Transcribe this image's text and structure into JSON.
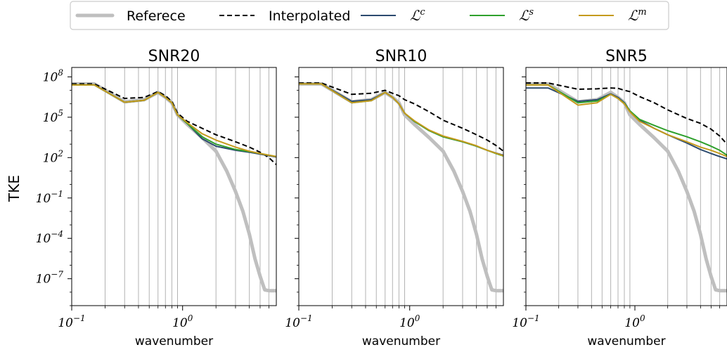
{
  "legend": {
    "placement": "top-center",
    "entries": [
      {
        "key": "reference",
        "label": "Referece",
        "color": "#bfbfbf",
        "style": "solid-thick"
      },
      {
        "key": "interpolated",
        "label": "Interpolated",
        "color": "#000000",
        "style": "dashed"
      },
      {
        "key": "lc",
        "label": "ℒ",
        "sup": "c",
        "color": "#2b4a6f",
        "style": "solid"
      },
      {
        "key": "ls",
        "label": "ℒ",
        "sup": "s",
        "color": "#2ea02c",
        "style": "solid"
      },
      {
        "key": "lm",
        "label": "ℒ",
        "sup": "m",
        "color": "#c49a1c",
        "style": "solid"
      }
    ]
  },
  "chart_data": [
    {
      "type": "line",
      "title": "SNR20",
      "xlabel": "wavenumber",
      "ylabel": "TKE",
      "xscale": "log",
      "yscale": "log",
      "xlim": [
        0.1,
        7
      ],
      "ylim": [
        1e-09,
        500000000.0
      ],
      "vertical_gridlines": [
        0.2,
        0.3,
        0.4,
        0.5,
        0.6,
        0.7,
        0.8,
        0.9,
        2,
        3,
        4,
        5,
        6
      ],
      "xticks": [
        {
          "value": 0.1,
          "base": "10",
          "exp": "−1"
        },
        {
          "value": 1,
          "base": "10",
          "exp": "0"
        }
      ],
      "yticks": [
        {
          "value": 100000000.0,
          "base": "10",
          "exp": "8"
        },
        {
          "value": 100000.0,
          "base": "10",
          "exp": "5"
        },
        {
          "value": 100.0,
          "base": "10",
          "exp": "2"
        },
        {
          "value": 0.1,
          "base": "10",
          "exp": "−1"
        },
        {
          "value": 0.0001,
          "base": "10",
          "exp": "−4"
        },
        {
          "value": 1e-07,
          "base": "10",
          "exp": "−7"
        }
      ],
      "series": [
        {
          "key": "reference",
          "x": [
            0.1,
            0.16,
            0.3,
            0.45,
            0.6,
            0.7,
            0.8,
            0.9,
            1.1,
            1.5,
            2,
            2.5,
            3,
            3.5,
            4,
            4.5,
            5,
            5.5,
            6,
            7
          ],
          "y": [
            30000000.0,
            30000000.0,
            1400000.0,
            2000000.0,
            7000000.0,
            3000000.0,
            1200000.0,
            150000.0,
            30000.0,
            3000.0,
            300.0,
            10.0,
            0.3,
            0.01,
            0.0002,
            3e-06,
            1.5e-07,
            1.5e-08,
            1.3e-08,
            1.3e-08
          ]
        },
        {
          "key": "interpolated",
          "x": [
            0.1,
            0.16,
            0.3,
            0.45,
            0.6,
            0.7,
            0.8,
            0.9,
            1.1,
            1.5,
            2,
            3,
            4,
            5,
            6,
            7
          ],
          "y": [
            30000000.0,
            30000000.0,
            2500000.0,
            3000000.0,
            8000000.0,
            4000000.0,
            1500000.0,
            200000.0,
            50000.0,
            15000.0,
            5000.0,
            1500.0,
            600.0,
            250.0,
            100.0,
            30.0
          ]
        },
        {
          "key": "lc",
          "x": [
            0.1,
            0.16,
            0.3,
            0.45,
            0.6,
            0.7,
            0.8,
            0.9,
            1.1,
            1.5,
            2,
            3,
            4,
            5,
            6,
            7
          ],
          "y": [
            25000000.0,
            25000000.0,
            1300000.0,
            1800000.0,
            7000000.0,
            3000000.0,
            1200000.0,
            150000.0,
            35000.0,
            2500.0,
            700.0,
            350.0,
            250.0,
            180.0,
            140.0,
            110.0
          ]
        },
        {
          "key": "ls",
          "x": [
            0.1,
            0.16,
            0.3,
            0.45,
            0.6,
            0.7,
            0.8,
            0.9,
            1.1,
            1.5,
            2,
            3,
            4,
            5,
            6,
            7
          ],
          "y": [
            25000000.0,
            25000000.0,
            1300000.0,
            1800000.0,
            7000000.0,
            3000000.0,
            1200000.0,
            150000.0,
            35000.0,
            3500.0,
            1000.0,
            400.0,
            280.0,
            200.0,
            150.0,
            120.0
          ]
        },
        {
          "key": "lm",
          "x": [
            0.1,
            0.16,
            0.3,
            0.45,
            0.6,
            0.7,
            0.8,
            0.9,
            1.1,
            1.5,
            2,
            3,
            4,
            5,
            6,
            7
          ],
          "y": [
            25000000.0,
            25000000.0,
            1300000.0,
            1800000.0,
            7000000.0,
            3000000.0,
            1200000.0,
            150000.0,
            40000.0,
            6000.0,
            2000.0,
            600.0,
            300.0,
            200.0,
            150.0,
            120.0
          ]
        }
      ]
    },
    {
      "type": "line",
      "title": "SNR10",
      "xlabel": "wavenumber",
      "ylabel": "",
      "xscale": "log",
      "yscale": "log",
      "xlim": [
        0.1,
        7
      ],
      "ylim": [
        1e-09,
        500000000.0
      ],
      "vertical_gridlines": [
        0.2,
        0.3,
        0.4,
        0.5,
        0.6,
        0.7,
        0.8,
        0.9,
        2,
        3,
        4,
        5,
        6
      ],
      "xticks": [
        {
          "value": 0.1,
          "base": "10",
          "exp": "−1"
        },
        {
          "value": 1,
          "base": "10",
          "exp": "0"
        }
      ],
      "yticks": [],
      "series": [
        {
          "key": "reference",
          "x": [
            0.1,
            0.16,
            0.3,
            0.45,
            0.6,
            0.7,
            0.8,
            0.9,
            1.1,
            1.5,
            2,
            2.5,
            3,
            3.5,
            4,
            4.5,
            5,
            5.5,
            6,
            7
          ],
          "y": [
            30000000.0,
            30000000.0,
            1400000.0,
            2000000.0,
            7000000.0,
            3000000.0,
            1200000.0,
            150000.0,
            30000.0,
            3000.0,
            300.0,
            10.0,
            0.3,
            0.01,
            0.0002,
            3e-06,
            1.5e-07,
            1.5e-08,
            1.3e-08,
            1.3e-08
          ]
        },
        {
          "key": "interpolated",
          "x": [
            0.1,
            0.16,
            0.3,
            0.45,
            0.6,
            0.7,
            0.8,
            0.9,
            1.1,
            1.5,
            2,
            3,
            4,
            5,
            6,
            7
          ],
          "y": [
            35000000.0,
            35000000.0,
            5000000.0,
            6000000.0,
            10000000.0,
            6000000.0,
            4000000.0,
            2000000.0,
            1000000.0,
            250000.0,
            60000.0,
            15000.0,
            5000.0,
            2000.0,
            800.0,
            300.0
          ]
        },
        {
          "key": "lc",
          "x": [
            0.1,
            0.16,
            0.3,
            0.45,
            0.6,
            0.7,
            0.8,
            0.9,
            1.1,
            1.5,
            2,
            3,
            4,
            5,
            6,
            7
          ],
          "y": [
            30000000.0,
            30000000.0,
            1500000.0,
            2000000.0,
            7000000.0,
            3000000.0,
            1000000.0,
            200000.0,
            50000.0,
            10000.0,
            3500.0,
            1500.0,
            700.0,
            350.0,
            220.0,
            150.0
          ]
        },
        {
          "key": "ls",
          "x": [
            0.1,
            0.16,
            0.3,
            0.45,
            0.6,
            0.7,
            0.8,
            0.9,
            1.1,
            1.5,
            2,
            3,
            4,
            5,
            6,
            7
          ],
          "y": [
            30000000.0,
            30000000.0,
            1200000.0,
            1700000.0,
            7000000.0,
            3000000.0,
            1000000.0,
            200000.0,
            50000.0,
            10000.0,
            3500.0,
            1500.0,
            700.0,
            350.0,
            200.0,
            130.0
          ]
        },
        {
          "key": "lm",
          "x": [
            0.1,
            0.16,
            0.3,
            0.45,
            0.6,
            0.7,
            0.8,
            0.9,
            1.1,
            1.5,
            2,
            3,
            4,
            5,
            6,
            7
          ],
          "y": [
            30000000.0,
            30000000.0,
            1200000.0,
            1700000.0,
            7000000.0,
            3000000.0,
            1000000.0,
            200000.0,
            55000.0,
            11000.0,
            4000.0,
            1600.0,
            750.0,
            350.0,
            210.0,
            140.0
          ]
        }
      ]
    },
    {
      "type": "line",
      "title": "SNR5",
      "xlabel": "wavenumber",
      "ylabel": "",
      "xscale": "log",
      "yscale": "log",
      "xlim": [
        0.1,
        7
      ],
      "ylim": [
        1e-09,
        500000000.0
      ],
      "vertical_gridlines": [
        0.2,
        0.3,
        0.4,
        0.5,
        0.6,
        0.7,
        0.8,
        0.9,
        2,
        3,
        4,
        5,
        6
      ],
      "xticks": [
        {
          "value": 0.1,
          "base": "10",
          "exp": "−1"
        },
        {
          "value": 1,
          "base": "10",
          "exp": "0"
        }
      ],
      "yticks": [],
      "series": [
        {
          "key": "reference",
          "x": [
            0.1,
            0.16,
            0.3,
            0.45,
            0.6,
            0.7,
            0.8,
            0.9,
            1.1,
            1.5,
            2,
            2.5,
            3,
            3.5,
            4,
            4.5,
            5,
            5.5,
            6,
            7
          ],
          "y": [
            30000000.0,
            30000000.0,
            1400000.0,
            2000000.0,
            7000000.0,
            3000000.0,
            1200000.0,
            150000.0,
            30000.0,
            3000.0,
            300.0,
            10.0,
            0.3,
            0.01,
            0.0002,
            3e-06,
            1.5e-07,
            1.5e-08,
            1.3e-08,
            1.3e-08
          ]
        },
        {
          "key": "interpolated",
          "x": [
            0.1,
            0.16,
            0.3,
            0.45,
            0.6,
            0.7,
            0.8,
            0.9,
            1.1,
            1.5,
            2,
            3,
            4,
            5,
            6,
            7
          ],
          "y": [
            35000000.0,
            35000000.0,
            12000000.0,
            13000000.0,
            15000000.0,
            14000000.0,
            10000000.0,
            8000000.0,
            3500000.0,
            1200000.0,
            350000.0,
            80000.0,
            35000.0,
            13000.0,
            4000.0,
            1000.0
          ]
        },
        {
          "key": "lc",
          "x": [
            0.1,
            0.16,
            0.3,
            0.45,
            0.6,
            0.7,
            0.8,
            0.9,
            1.1,
            1.5,
            2,
            3,
            4,
            5,
            6,
            7
          ],
          "y": [
            15000000.0,
            15000000.0,
            1500000.0,
            2000000.0,
            5500000.0,
            3000000.0,
            1200000.0,
            300000.0,
            60000.0,
            15000.0,
            5000.0,
            1200.0,
            400.0,
            200.0,
            120.0,
            80.0
          ]
        },
        {
          "key": "ls",
          "x": [
            0.1,
            0.16,
            0.3,
            0.45,
            0.6,
            0.7,
            0.8,
            0.9,
            1.1,
            1.5,
            2,
            3,
            4,
            5,
            6,
            7
          ],
          "y": [
            25000000.0,
            25000000.0,
            1200000.0,
            1600000.0,
            5000000.0,
            2500000.0,
            1100000.0,
            300000.0,
            70000.0,
            25000.0,
            10000.0,
            3500.0,
            1500.0,
            700.0,
            350.0,
            150.0
          ]
        },
        {
          "key": "lm",
          "x": [
            0.1,
            0.16,
            0.3,
            0.45,
            0.6,
            0.7,
            0.8,
            0.9,
            1.1,
            1.5,
            2,
            3,
            4,
            5,
            6,
            7
          ],
          "y": [
            25000000.0,
            25000000.0,
            800000.0,
            1200000.0,
            5000000.0,
            2500000.0,
            1000000.0,
            250000.0,
            50000.0,
            15000.0,
            5000.0,
            1500.0,
            600.0,
            350.0,
            200.0,
            120.0
          ]
        }
      ]
    }
  ]
}
